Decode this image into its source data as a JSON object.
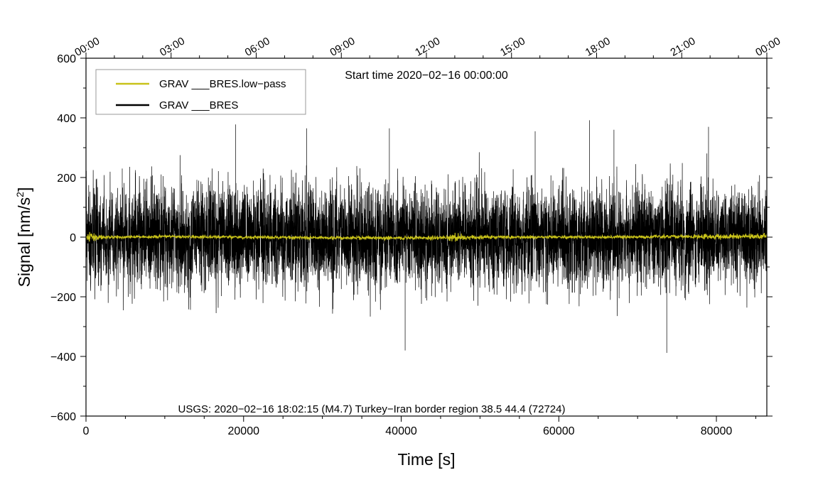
{
  "chart_data": {
    "type": "line",
    "title": "",
    "start_time": "Start time 2020−02−16 00:00:00",
    "xlabel": "Time [s]",
    "ylabel_main": "Signal [nm/s",
    "ylabel_sup": "2",
    "ylabel_end": "]",
    "xlim": [
      0,
      86400
    ],
    "ylim": [
      -600,
      600
    ],
    "x_ticks": [
      0,
      20000,
      40000,
      60000,
      80000
    ],
    "x_tick_labels": [
      "0",
      "20000",
      "40000",
      "60000",
      "80000"
    ],
    "x_minor_step": 5000,
    "y_ticks": [
      -600,
      -400,
      -200,
      0,
      200,
      400,
      600
    ],
    "y_tick_labels": [
      "−600",
      "−400",
      "−200",
      "0",
      "200",
      "400",
      "600"
    ],
    "y_minor_step": 100,
    "top_axis_ticks_s": [
      0,
      10800,
      21600,
      32400,
      43200,
      54000,
      64800,
      75600,
      86400
    ],
    "top_axis_labels": [
      "00:00",
      "03:00",
      "06:00",
      "09:00",
      "12:00",
      "15:00",
      "18:00",
      "21:00",
      "00:00"
    ],
    "annotation": "USGS: 2020−02−16 18:02:15 (M4.7) Turkey−Iran border region 38.5 44.4 (72724)",
    "legend_position": "top-left",
    "series": [
      {
        "name": "GRAV ___BRES.low−pass",
        "color": "#c8c21a",
        "envelope_x": [
          0,
          500,
          1500,
          4000,
          10000,
          20000,
          30000,
          40000,
          46000,
          47000,
          48000,
          55000,
          65000,
          75000,
          80000,
          86400
        ],
        "envelope_amp": [
          10,
          20,
          10,
          6,
          6,
          7,
          7,
          8,
          9,
          20,
          9,
          7,
          6,
          8,
          11,
          12
        ],
        "envelope_offset": [
          0,
          0,
          0,
          0,
          2,
          0,
          -2,
          -3,
          -2,
          0,
          -1,
          0,
          0,
          2,
          2,
          3
        ]
      },
      {
        "name": "GRAV ___BRES",
        "color": "#000000",
        "envelope_x": [
          0,
          10000,
          20000,
          30000,
          40000,
          50000,
          60000,
          70000,
          80000,
          86400
        ],
        "envelope_amp": [
          280,
          285,
          290,
          285,
          280,
          285,
          295,
          285,
          280,
          290
        ],
        "spike_x": [
          4600,
          19000,
          28000,
          38500,
          40500,
          57000,
          63900,
          67000,
          73700,
          79000
        ],
        "spike_y": [
          230,
          378,
          365,
          365,
          -380,
          355,
          392,
          360,
          -388,
          370
        ]
      }
    ]
  }
}
